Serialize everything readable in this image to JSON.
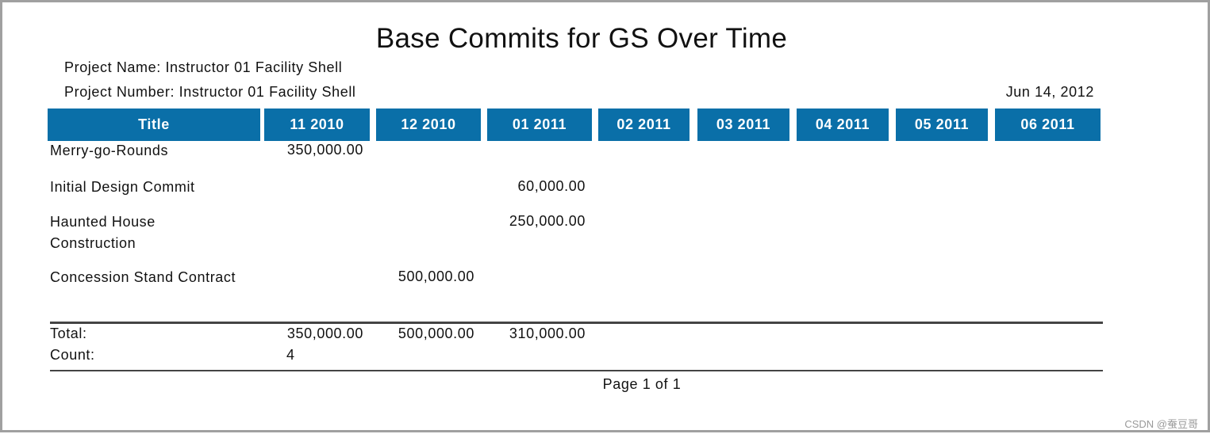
{
  "header": {
    "title": "Base Commits for GS Over Time",
    "project_name": "Project Name: Instructor 01 Facility Shell",
    "project_number": "Project Number: Instructor 01 Facility Shell",
    "date": "Jun 14, 2012"
  },
  "table": {
    "columns": [
      "Title",
      "11 2010",
      "12 2010",
      "01 2011",
      "02 2011",
      "03 2011",
      "04 2011",
      "05 2011",
      "06 2011"
    ],
    "rows": [
      {
        "title": "Merry-go-Rounds",
        "cells": [
          {
            "column": 1,
            "text": "350,000.00"
          }
        ]
      },
      {
        "title": "Initial Design Commit",
        "cells": [
          {
            "column": 3,
            "text": "60,000.00"
          }
        ]
      },
      {
        "title": "Haunted House Construction",
        "cells": [
          {
            "column": 3,
            "text": "250,000.00"
          }
        ]
      },
      {
        "title": "Concession Stand Contract",
        "cells": [
          {
            "column": 2,
            "text": "500,000.00"
          }
        ]
      }
    ],
    "total": {
      "label": "Total:",
      "cells": [
        {
          "column": 1,
          "text": "350,000.00"
        },
        {
          "column": 2,
          "text": "500,000.00"
        },
        {
          "column": 3,
          "text": "310,000.00"
        }
      ]
    },
    "count": {
      "label": "Count:",
      "cells": [
        {
          "column": 1,
          "text": "4"
        }
      ]
    }
  },
  "footer": {
    "page": "Page 1 of 1"
  },
  "watermark": "CSDN @蚕豆哥"
}
